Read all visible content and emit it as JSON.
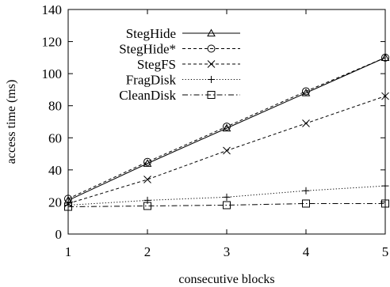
{
  "chart_data": {
    "type": "line",
    "title": "",
    "xlabel": "consecutive blocks",
    "ylabel": "access time (ms)",
    "x": [
      1,
      2,
      3,
      4,
      5
    ],
    "xlim": [
      1,
      5
    ],
    "ylim": [
      0,
      140
    ],
    "xticks": [
      1,
      2,
      3,
      4,
      5
    ],
    "yticks": [
      0,
      20,
      40,
      60,
      80,
      100,
      120,
      140
    ],
    "grid": false,
    "legend_position": "top-left",
    "series": [
      {
        "name": "StegHide",
        "values": [
          21,
          44,
          66,
          88,
          110
        ],
        "line": "solid",
        "marker": "triangle"
      },
      {
        "name": "StegHide*",
        "values": [
          22,
          45,
          67,
          89,
          110
        ],
        "line": "dashed",
        "marker": "circle"
      },
      {
        "name": "StegFS",
        "values": [
          19,
          34,
          52,
          69,
          86
        ],
        "line": "dashed",
        "marker": "x"
      },
      {
        "name": "FragDisk",
        "values": [
          18,
          21,
          23,
          27,
          30
        ],
        "line": "dotted",
        "marker": "plus"
      },
      {
        "name": "CleanDisk",
        "values": [
          17,
          17.5,
          18,
          19,
          19
        ],
        "line": "dashdot",
        "marker": "square"
      }
    ]
  }
}
